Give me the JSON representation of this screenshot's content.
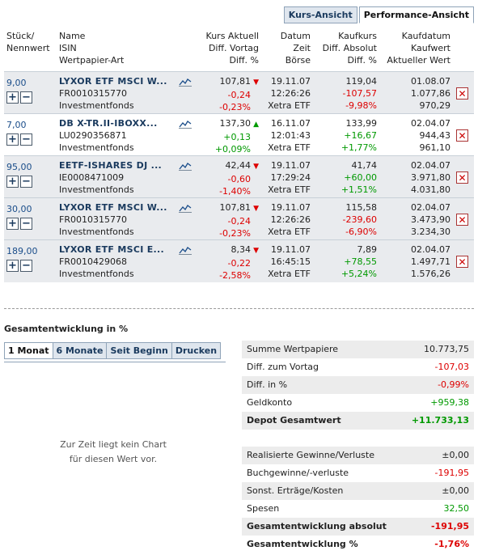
{
  "tabs": {
    "kurs": "Kurs-Ansicht",
    "performance": "Performance-Ansicht"
  },
  "header": {
    "qty1": "Stück/",
    "qty2": "Nennwert",
    "name1": "Name",
    "name2": "ISIN",
    "name3": "Wertpapier-Art",
    "k1": "Kurs Aktuell",
    "k2": "Diff. Vortag",
    "k3": "Diff. %",
    "d1": "Datum",
    "d2": "Zeit",
    "d3": "Börse",
    "kk1": "Kaufkurs",
    "kk2": "Diff. Absolut",
    "kk3": "Diff. %",
    "kd1": "Kaufdatum",
    "kd2": "Kaufwert",
    "kd3": "Aktueller Wert"
  },
  "rows": [
    {
      "qty": "9,00",
      "name": "LYXOR ETF MSCI W...",
      "isin": "FR0010315770",
      "type": "Investmentfonds",
      "kurs": "107,81",
      "kurs_trend": "down",
      "diff_vortag": "-0,24",
      "diff_pct": "-0,23%",
      "datum": "19.11.07",
      "zeit": "12:26:26",
      "boerse": "Xetra ETF",
      "kaufkurs": "119,04",
      "diff_abs": "-107,57",
      "diff_abs_pct": "-9,98%",
      "kaufdatum": "01.08.07",
      "kaufwert": "1.077,86",
      "akt_wert": "970,29"
    },
    {
      "qty": "7,00",
      "name": "DB X-TR.II-IBOXX...",
      "isin": "LU0290356871",
      "type": "Investmentfonds",
      "kurs": "137,30",
      "kurs_trend": "up",
      "diff_vortag": "+0,13",
      "diff_pct": "+0,09%",
      "datum": "16.11.07",
      "zeit": "12:01:43",
      "boerse": "Xetra ETF",
      "kaufkurs": "133,99",
      "diff_abs": "+16,67",
      "diff_abs_pct": "+1,77%",
      "kaufdatum": "02.04.07",
      "kaufwert": "944,43",
      "akt_wert": "961,10"
    },
    {
      "qty": "95,00",
      "name": "EETF-ISHARES DJ ...",
      "isin": "IE0008471009",
      "type": "Investmentfonds",
      "kurs": "42,44",
      "kurs_trend": "down",
      "diff_vortag": "-0,60",
      "diff_pct": "-1,40%",
      "datum": "19.11.07",
      "zeit": "17:29:24",
      "boerse": "Xetra ETF",
      "kaufkurs": "41,74",
      "diff_abs": "+60,00",
      "diff_abs_pct": "+1,51%",
      "kaufdatum": "02.04.07",
      "kaufwert": "3.971,80",
      "akt_wert": "4.031,80"
    },
    {
      "qty": "30,00",
      "name": "LYXOR ETF MSCI W...",
      "isin": "FR0010315770",
      "type": "Investmentfonds",
      "kurs": "107,81",
      "kurs_trend": "down",
      "diff_vortag": "-0,24",
      "diff_pct": "-0,23%",
      "datum": "19.11.07",
      "zeit": "12:26:26",
      "boerse": "Xetra ETF",
      "kaufkurs": "115,58",
      "diff_abs": "-239,60",
      "diff_abs_pct": "-6,90%",
      "kaufdatum": "02.04.07",
      "kaufwert": "3.473,90",
      "akt_wert": "3.234,30"
    },
    {
      "qty": "189,00",
      "name": "LYXOR ETF MSCI E...",
      "isin": "FR0010429068",
      "type": "Investmentfonds",
      "kurs": "8,34",
      "kurs_trend": "down",
      "diff_vortag": "-0,22",
      "diff_pct": "-2,58%",
      "datum": "19.11.07",
      "zeit": "16:45:15",
      "boerse": "Xetra ETF",
      "kaufkurs": "7,89",
      "diff_abs": "+78,55",
      "diff_abs_pct": "+5,24%",
      "kaufdatum": "02.04.07",
      "kaufwert": "1.497,71",
      "akt_wert": "1.576,26"
    }
  ],
  "section_title": "Gesamtentwicklung in %",
  "chart_tabs": [
    "1 Monat",
    "6 Monate",
    "Seit Beginn",
    "Drucken"
  ],
  "no_chart_1": "Zur Zeit liegt kein Chart",
  "no_chart_2": "für diesen Wert vor.",
  "summary1": [
    {
      "label": "Summe Wertpapiere",
      "value": "10.773,75",
      "color": "#222",
      "bold": false
    },
    {
      "label": "Diff. zum Vortag",
      "value": "-107,03",
      "color": "#d00",
      "bold": false
    },
    {
      "label": "Diff. in %",
      "value": "-0,99%",
      "color": "#d00",
      "bold": false
    },
    {
      "label": "Geldkonto",
      "value": "+959,38",
      "color": "#090",
      "bold": false
    },
    {
      "label": "Depot Gesamtwert",
      "value": "+11.733,13",
      "color": "#090",
      "bold": true
    }
  ],
  "summary2": [
    {
      "label": "Realisierte Gewinne/Verluste",
      "value": "±0,00",
      "color": "#222",
      "bold": false
    },
    {
      "label": "Buchgewinne/-verluste",
      "value": "-191,95",
      "color": "#d00",
      "bold": false
    },
    {
      "label": "Sonst. Erträge/Kosten",
      "value": "±0,00",
      "color": "#222",
      "bold": false
    },
    {
      "label": "Spesen",
      "value": "32,50",
      "color": "#090",
      "bold": false
    },
    {
      "label": "Gesamtentwicklung absolut",
      "value": "-191,95",
      "color": "#d00",
      "bold": true
    },
    {
      "label": "Gesamtentwicklung %",
      "value": "-1,76%",
      "color": "#d00",
      "bold": true
    }
  ]
}
